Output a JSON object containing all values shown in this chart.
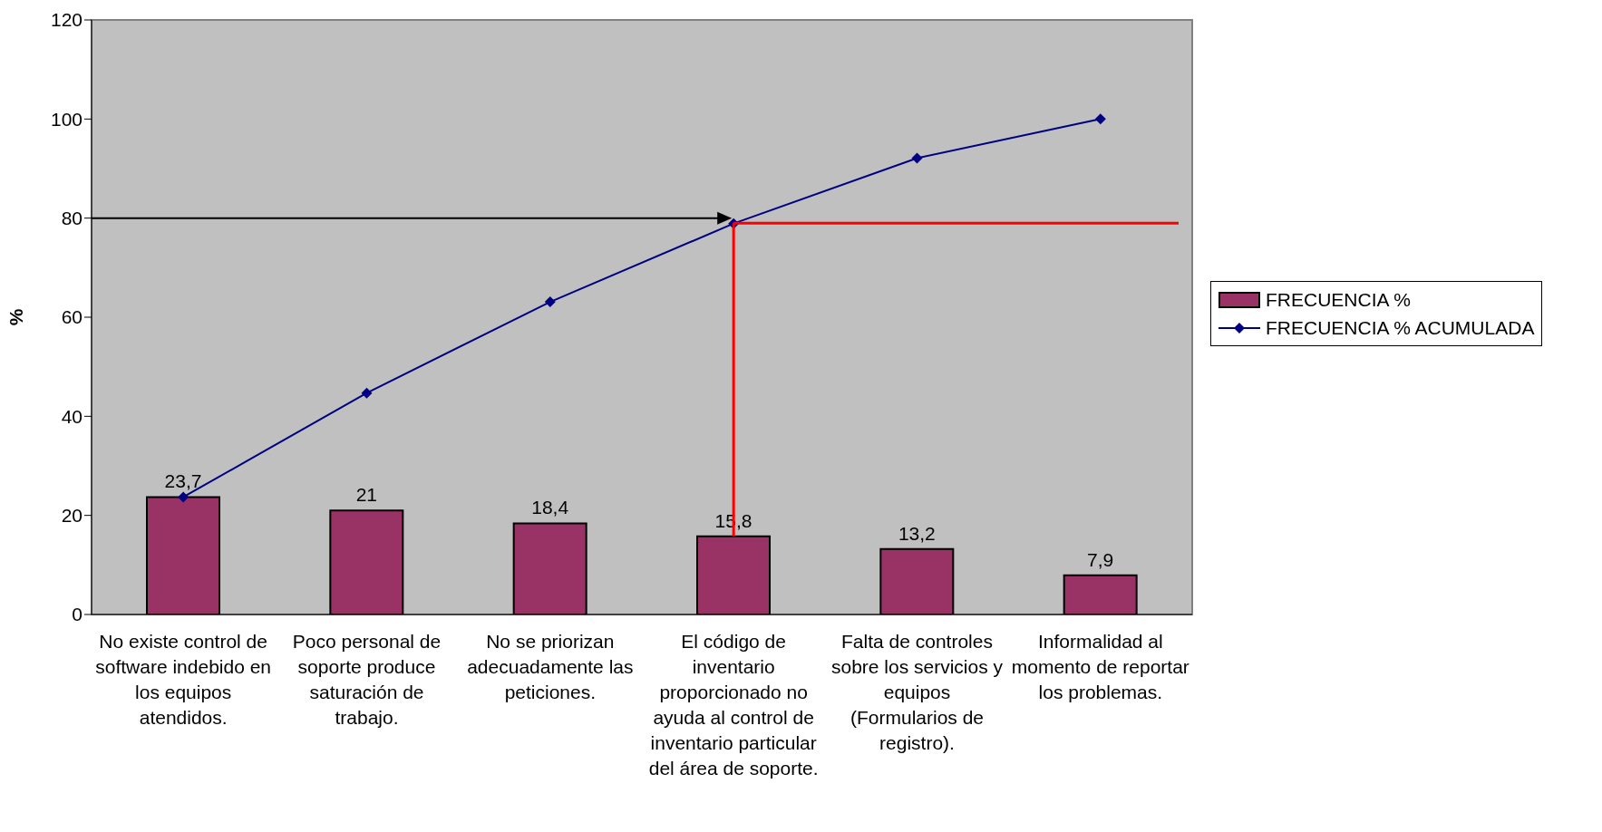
{
  "chart_data": {
    "type": "bar",
    "ylabel": "%",
    "categories": [
      "No existe control de software indebido en los equipos atendidos.",
      "Poco personal de soporte produce saturación de trabajo.",
      "No se priorizan adecuadamente las peticiones.",
      "El código de inventario proporcionado no ayuda al control de inventario particular del área de soporte.",
      "Falta de controles sobre los servicios y equipos (Formularios de registro).",
      "Informalidad al momento de reportar los problemas."
    ],
    "series": [
      {
        "name": "FRECUENCIA %",
        "color": "#993366",
        "values": [
          23.7,
          21,
          18.4,
          15.8,
          13.2,
          7.9
        ],
        "value_labels": [
          "23,7",
          "21",
          "18,4",
          "15,8",
          "13,2",
          "7,9"
        ]
      },
      {
        "name": "FRECUENCIA % ACUMULADA",
        "type": "line",
        "color": "#000080",
        "values": [
          23.7,
          44.7,
          63.1,
          78.9,
          92.1,
          100
        ],
        "marker": "diamond"
      }
    ],
    "ylim": [
      0,
      120
    ],
    "yticks": [
      0,
      20,
      40,
      60,
      80,
      100,
      120
    ],
    "legend": "right",
    "ref_lines": [
      {
        "axis": "y",
        "value": 80,
        "color": "#000000"
      },
      {
        "axis": "y",
        "value": 79,
        "color": "#ff0000"
      },
      {
        "axis": "x",
        "value": "El código de inventario proporcionado no ayuda al control de inventario particular del área de soporte.",
        "color": "#ff0000"
      }
    ]
  }
}
